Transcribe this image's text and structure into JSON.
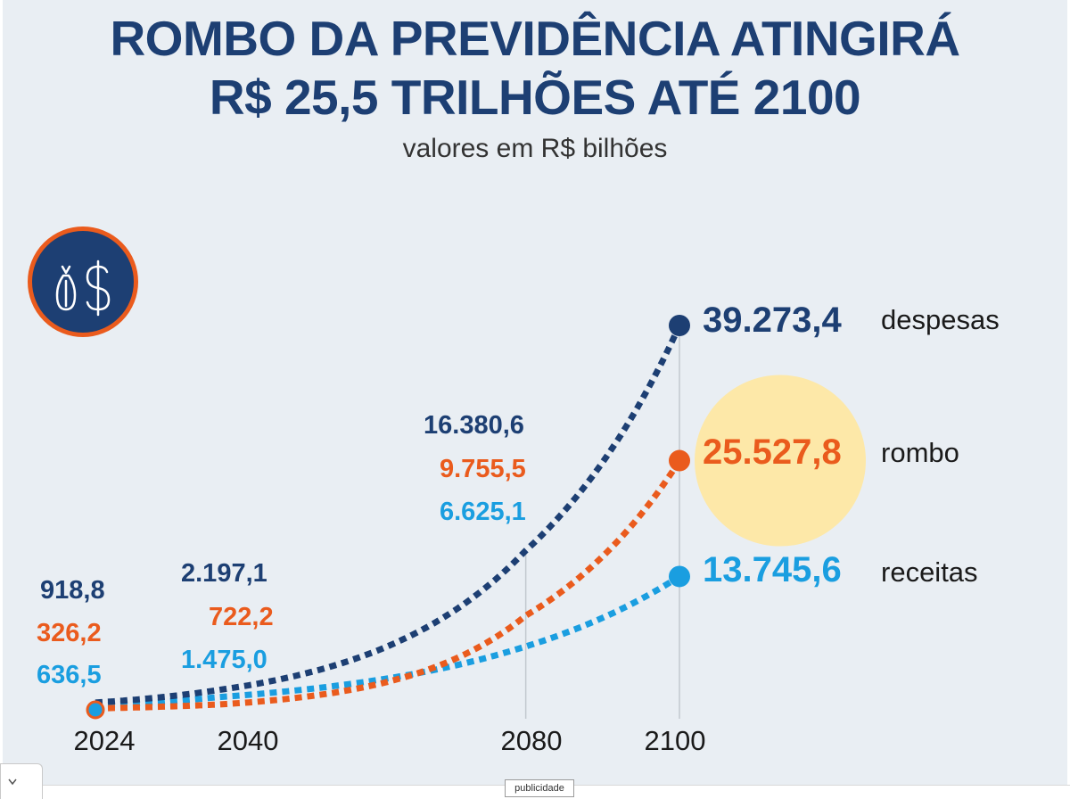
{
  "title": {
    "line1": "ROMBO DA PREVIDÊNCIA ATINGIRÁ",
    "line2": "R$ 25,5 TRILHÕES ATÉ 2100"
  },
  "subtitle": "valores em R$ bilhões",
  "badge": {
    "icon": "money-bag-icon",
    "text": "R$"
  },
  "colors": {
    "despesas": "#1d3f73",
    "rombo": "#ea5b1d",
    "receitas": "#1a9ee0",
    "highlight": "#fde8a8",
    "background": "#e9eef3"
  },
  "chart_data": {
    "type": "line",
    "title": "ROMBO DA PREVIDÊNCIA ATINGIRÁ R$ 25,5 TRILHÕES ATÉ 2100",
    "subtitle": "valores em R$ bilhões",
    "x": [
      2024,
      2040,
      2080,
      2100
    ],
    "x_tick_labels": [
      "2024",
      "2040",
      "2080",
      "2100"
    ],
    "series": [
      {
        "key": "despesas",
        "name": "despesas",
        "values": [
          918.8,
          2197.1,
          16380.6,
          39273.4
        ],
        "labels": [
          "918,8",
          "2.197,1",
          "16.380,6",
          "39.273,4"
        ]
      },
      {
        "key": "rombo",
        "name": "rombo",
        "values": [
          326.2,
          722.2,
          9755.5,
          25527.8
        ],
        "labels": [
          "326,2",
          "722,2",
          "9.755,5",
          "25.527,8"
        ]
      },
      {
        "key": "receitas",
        "name": "receitas",
        "values": [
          636.5,
          1475.0,
          6625.1,
          13745.6
        ],
        "labels": [
          "636,5",
          "1.475,0",
          "6.625,1",
          "13.745,6"
        ]
      }
    ],
    "xlim": [
      2024,
      2100
    ],
    "ylim": [
      0,
      39273.4
    ],
    "line_style": "dotted",
    "grid": false,
    "legend": "end-of-line labels"
  },
  "footer": {
    "ad_label": "publicidade",
    "collapse_icon": "chevron-down-icon"
  }
}
